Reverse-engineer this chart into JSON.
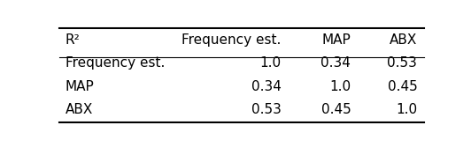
{
  "header_col": "R²",
  "columns": [
    "Frequency est.",
    "MAP",
    "ABX"
  ],
  "rows": [
    {
      "label": "Frequency est.",
      "values": [
        "1.0",
        "0.34",
        "0.53"
      ]
    },
    {
      "label": "MAP",
      "values": [
        "0.34",
        "1.0",
        "0.45"
      ]
    },
    {
      "label": "ABX",
      "values": [
        "0.53",
        "0.45",
        "1.0"
      ]
    }
  ],
  "figsize": [
    5.32,
    1.84
  ],
  "dpi": 100,
  "bg_color": "#ffffff",
  "font_size": 11
}
